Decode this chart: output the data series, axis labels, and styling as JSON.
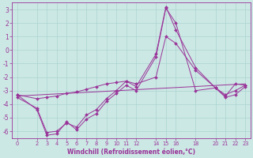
{
  "xlabel": "Windchill (Refroidissement éolien,°C)",
  "bg_color": "#cce8e4",
  "grid_color": "#aad4d0",
  "line_color": "#993399",
  "ylim": [
    -6.5,
    3.5
  ],
  "xlim": [
    -0.5,
    23.5
  ],
  "yticks": [
    -6,
    -5,
    -4,
    -3,
    -2,
    -1,
    0,
    1,
    2,
    3
  ],
  "xticks": [
    0,
    2,
    3,
    4,
    5,
    6,
    7,
    8,
    9,
    10,
    11,
    12,
    14,
    15,
    16,
    18,
    20,
    21,
    22,
    23
  ],
  "line1_x": [
    0,
    2,
    3,
    4,
    5,
    6,
    7,
    8,
    9,
    10,
    11,
    12,
    14,
    15,
    16,
    18,
    20,
    21,
    22,
    23
  ],
  "line1_y": [
    -3.3,
    -4.4,
    -6.3,
    -6.2,
    -5.3,
    -5.9,
    -5.1,
    -4.7,
    -3.8,
    -3.2,
    -2.6,
    -3.0,
    -0.5,
    3.1,
    2.0,
    -3.0,
    -2.8,
    -3.4,
    -2.5,
    -2.6
  ],
  "line2_x": [
    0,
    2,
    3,
    4,
    5,
    6,
    7,
    8,
    9,
    10,
    11,
    12,
    14,
    15,
    16,
    18,
    20,
    21,
    22,
    23
  ],
  "line2_y": [
    -3.5,
    -4.3,
    -6.1,
    -6.0,
    -5.4,
    -5.7,
    -4.8,
    -4.4,
    -3.6,
    -3.0,
    -2.3,
    -2.7,
    -0.3,
    3.2,
    1.5,
    -1.3,
    -2.8,
    -3.5,
    -3.3,
    -2.7
  ],
  "line3_x": [
    0,
    2,
    3,
    4,
    5,
    6,
    7,
    8,
    9,
    10,
    11,
    12,
    14,
    15,
    16,
    18,
    20,
    21,
    22,
    23
  ],
  "line3_y": [
    -3.3,
    -3.6,
    -3.5,
    -3.4,
    -3.2,
    -3.1,
    -2.9,
    -2.7,
    -2.5,
    -2.4,
    -2.3,
    -2.5,
    -2.0,
    1.0,
    0.5,
    -1.5,
    -2.8,
    -3.3,
    -3.0,
    -2.6
  ],
  "line4_x": [
    0,
    23
  ],
  "line4_y": [
    -3.4,
    -2.5
  ]
}
